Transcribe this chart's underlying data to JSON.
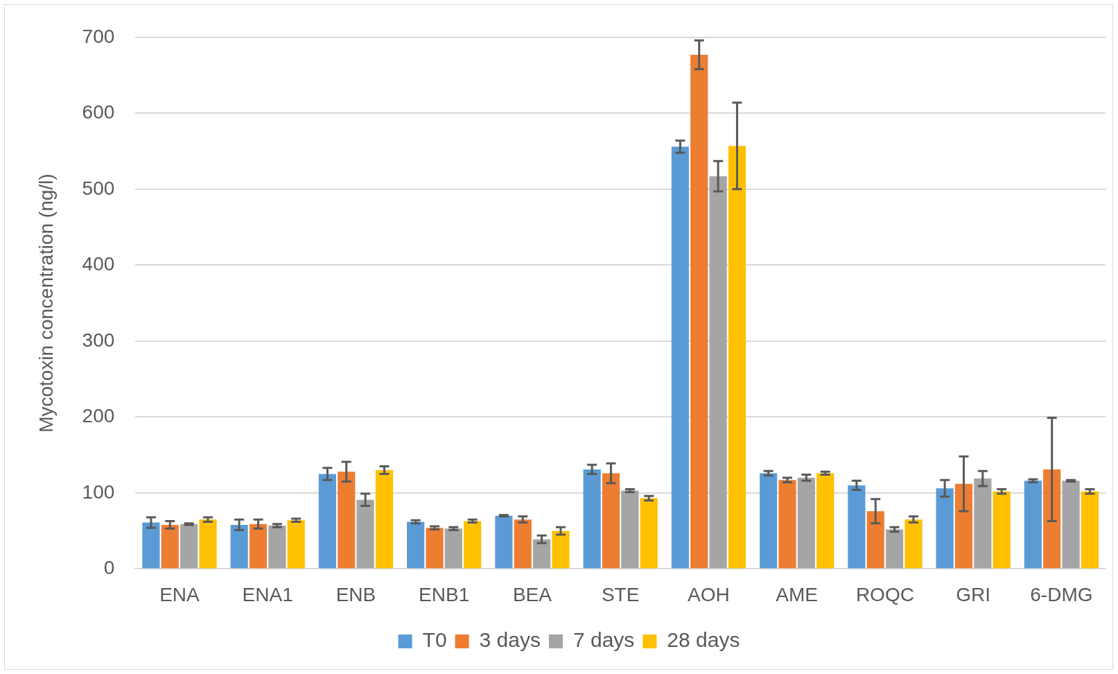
{
  "chart_data": {
    "type": "bar",
    "ylabel": "Mycotoxin concentration (ng/l)",
    "categories": [
      "ENA",
      "ENA1",
      "ENB",
      "ENB1",
      "BEA",
      "STE",
      "AOH",
      "AME",
      "ROQC",
      "GRI",
      "6-DMG"
    ],
    "series": [
      {
        "name": "T0",
        "color": "#5b9bd5",
        "values": [
          61,
          58,
          125,
          62,
          70,
          131,
          556,
          126,
          110,
          106,
          116
        ],
        "errors": [
          7,
          7,
          8,
          2,
          1,
          6,
          8,
          3,
          6,
          11,
          2
        ]
      },
      {
        "name": "3 days",
        "color": "#ed7d31",
        "values": [
          58,
          59,
          128,
          54,
          65,
          126,
          677,
          117,
          76,
          112,
          131
        ],
        "errors": [
          5,
          6,
          13,
          2,
          4,
          13,
          19,
          3,
          16,
          36,
          68
        ]
      },
      {
        "name": "7 days",
        "color": "#a5a5a5",
        "values": [
          59,
          57,
          91,
          53,
          39,
          103,
          517,
          120,
          52,
          119,
          116
        ],
        "errors": [
          1,
          2,
          8,
          2,
          5,
          2,
          20,
          4,
          3,
          10,
          1
        ]
      },
      {
        "name": "28 days",
        "color": "#ffc000",
        "values": [
          65,
          64,
          130,
          63,
          50,
          93,
          557,
          126,
          65,
          102,
          102
        ],
        "errors": [
          3,
          2,
          5,
          2,
          5,
          3,
          57,
          2,
          4,
          3,
          3
        ]
      }
    ],
    "ylim": [
      0,
      700
    ],
    "yticks": [
      0,
      100,
      200,
      300,
      400,
      500,
      600,
      700
    ],
    "grid": "y",
    "legend": "bottom"
  }
}
